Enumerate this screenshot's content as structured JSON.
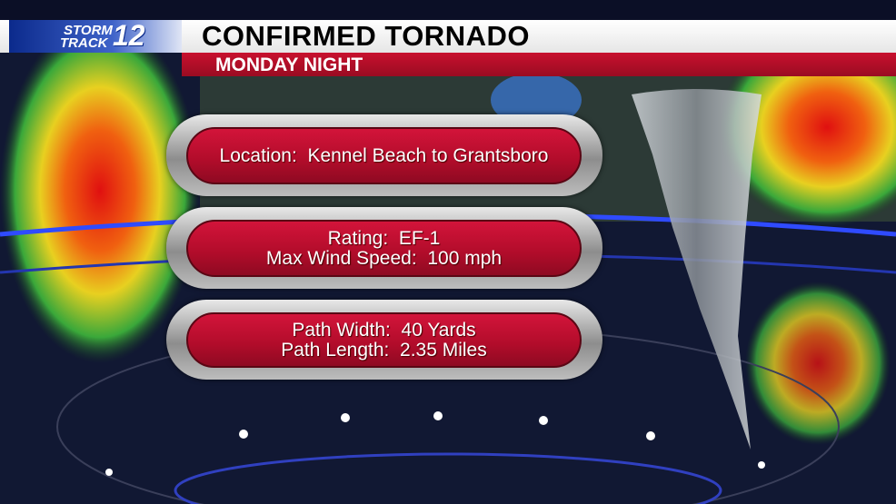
{
  "header": {
    "logo": {
      "line1": "STORM",
      "line2": "TRACK",
      "number": "12"
    },
    "title": "CONFIRMED TORNADO",
    "subtitle": "MONDAY NIGHT"
  },
  "panels": [
    {
      "lines": [
        "Location:  Kennel Beach to Grantsboro"
      ]
    },
    {
      "lines": [
        "Rating:  EF-1",
        "Max Wind Speed:  100 mph"
      ]
    },
    {
      "lines": [
        "Path Width:  40 Yards",
        "Path Length:  2.35 Miles"
      ]
    }
  ]
}
